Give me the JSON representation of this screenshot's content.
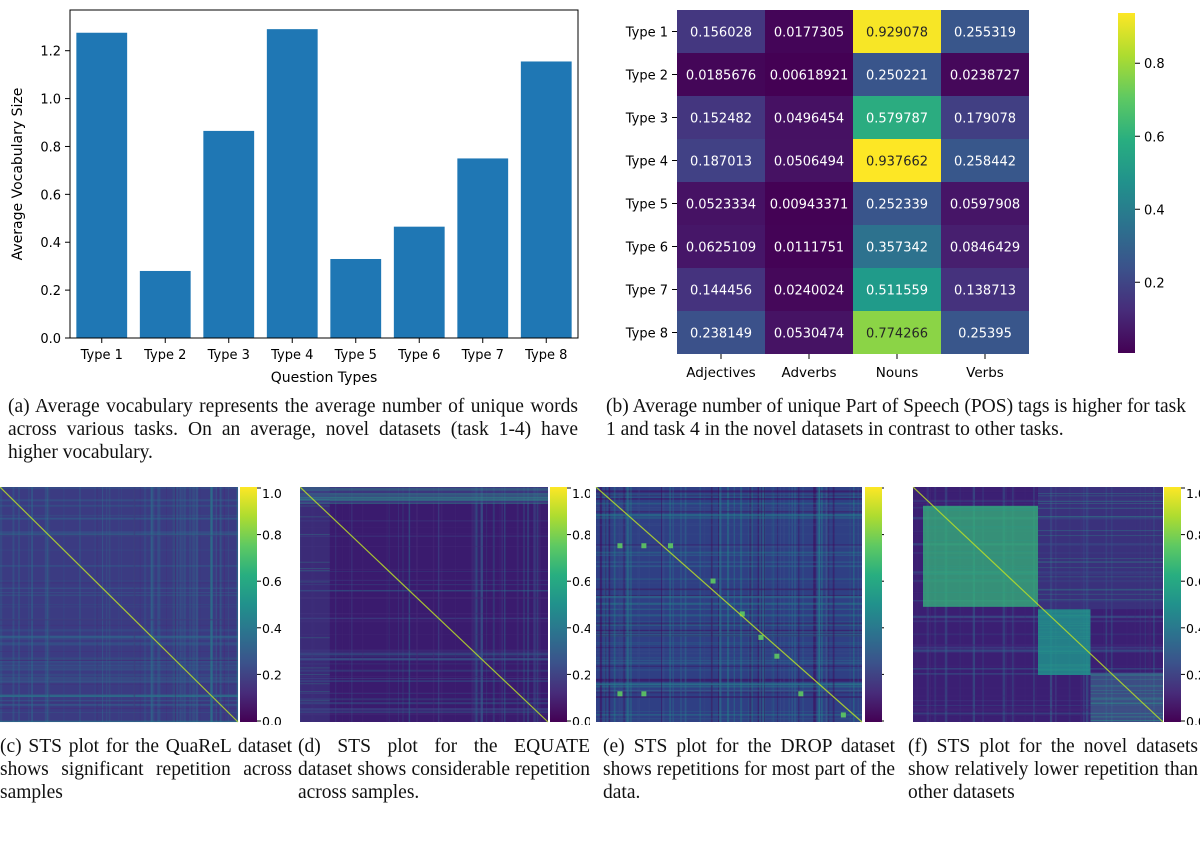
{
  "chart_data": [
    {
      "type": "bar",
      "title": "",
      "xlabel": "Question Types",
      "ylabel": "Average Vocabulary Size",
      "categories": [
        "Type 1",
        "Type 2",
        "Type 3",
        "Type 4",
        "Type 5",
        "Type 6",
        "Type 7",
        "Type 8"
      ],
      "values": [
        1.275,
        0.28,
        0.865,
        1.29,
        0.33,
        0.465,
        0.75,
        1.155
      ],
      "ylim": [
        0,
        1.37
      ],
      "yticks": [
        "0.0",
        "0.2",
        "0.4",
        "0.6",
        "0.8",
        "1.0",
        "1.2"
      ],
      "color": "#1f77b4",
      "grid": false
    },
    {
      "type": "heatmap",
      "title": "",
      "rows": [
        "Type 1",
        "Type 2",
        "Type 3",
        "Type 4",
        "Type 5",
        "Type 6",
        "Type 7",
        "Type 8"
      ],
      "columns": [
        "Adjectives",
        "Adverbs",
        "Nouns",
        "Verbs"
      ],
      "cells": [
        [
          "0.156028",
          "0.0177305",
          "0.929078",
          "0.255319"
        ],
        [
          "0.0185676",
          "0.00618921",
          "0.250221",
          "0.0238727"
        ],
        [
          "0.152482",
          "0.0496454",
          "0.579787",
          "0.179078"
        ],
        [
          "0.187013",
          "0.0506494",
          "0.937662",
          "0.258442"
        ],
        [
          "0.0523334",
          "0.00943371",
          "0.252339",
          "0.0597908"
        ],
        [
          "0.0625109",
          "0.0111751",
          "0.357342",
          "0.0846429"
        ],
        [
          "0.144456",
          "0.0240024",
          "0.511559",
          "0.138713"
        ],
        [
          "0.238149",
          "0.0530474",
          "0.774266",
          "0.25395"
        ]
      ],
      "colorbar_ticks": [
        "0.2",
        "0.4",
        "0.6",
        "0.8"
      ],
      "colormap": "viridis",
      "vmin": 0.00618921,
      "vmax": 0.937662
    }
  ],
  "sts_colorbar_ticks": [
    "1.0",
    "0.8",
    "0.6",
    "0.4",
    "0.2",
    "0.0"
  ],
  "captions": {
    "a": "(a) Average vocabulary represents the average number of unique words across various tasks. On an average, novel datasets (task 1-4) have higher vocabulary.",
    "b": "(b) Average number of unique Part of Speech (POS) tags is higher for task 1 and task 4 in the novel datasets in contrast to other tasks.",
    "c": "(c) STS plot for the QuaReL dataset shows significant repetition across samples",
    "d": "(d) STS plot for the EQUATE dataset shows considerable repetition across samples.",
    "e": "(e) STS plot for the DROP dataset shows repetitions for most part of the data.",
    "f": "(f) STS plot for the novel datasets show relatively lower repetition than other datasets"
  }
}
